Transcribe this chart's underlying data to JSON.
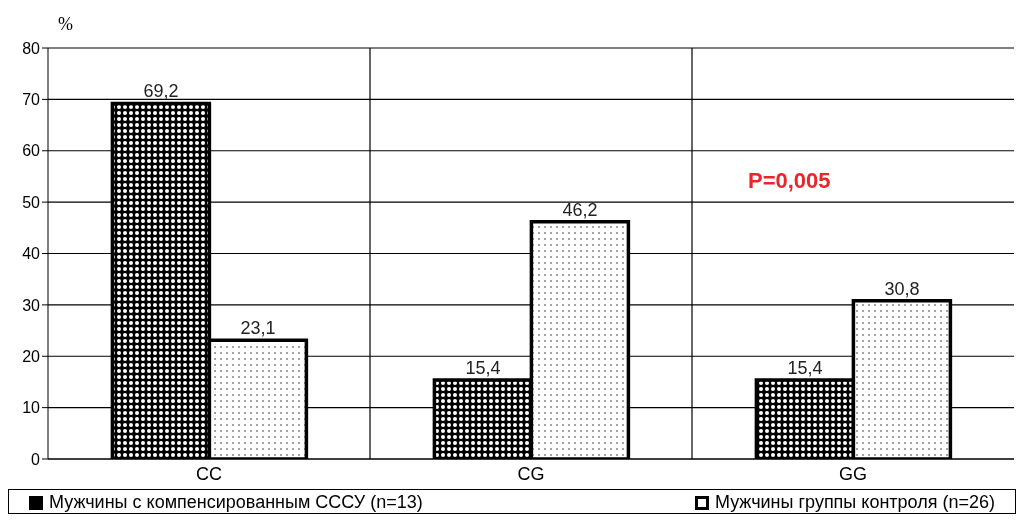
{
  "chart_data": {
    "type": "bar",
    "ylabel": "%",
    "categories": [
      "CC",
      "CG",
      "GG"
    ],
    "series": [
      {
        "name": "Мужчины с компенсированным СССУ (n=13)",
        "color": "#000000",
        "values": [
          69.2,
          15.4,
          15.4
        ],
        "value_labels": [
          "69,2",
          "15,4",
          "15,4"
        ]
      },
      {
        "name": "Мужчины группы контроля (n=26)",
        "color": "#ffffff",
        "values": [
          23.1,
          46.2,
          30.8
        ],
        "value_labels": [
          "23,1",
          "46,2",
          "30,8"
        ]
      }
    ],
    "ylim": [
      0,
      80
    ],
    "yticks": [
      0,
      10,
      20,
      30,
      40,
      50,
      60,
      70,
      80
    ],
    "grid": true,
    "legend": "bottom",
    "annotations": [
      "P=0,005"
    ]
  }
}
